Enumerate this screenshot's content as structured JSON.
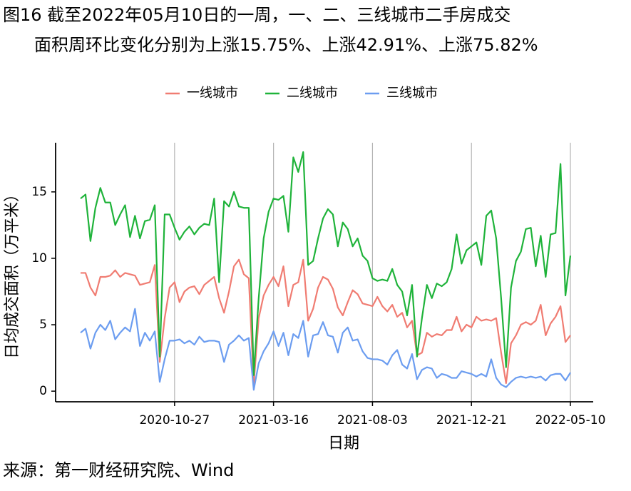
{
  "chart_data": {
    "type": "line",
    "title": "图16  截至2022年05月10日的一周，一、二、三线城市二手房成交",
    "subtitle": "面积周环比变化分别为上涨15.75%、上涨42.91%、上涨75.82%",
    "x_label": "日期",
    "y_label": "日均成交面积（万平米）",
    "source": "来源：第一财经研究院、Wind",
    "legend": "top",
    "grid": true,
    "ylim": [
      -0.8,
      18.7
    ],
    "yticks": [
      0,
      5,
      10,
      15
    ],
    "categories": [
      null,
      null,
      null,
      null,
      null,
      null,
      null,
      null,
      null,
      null,
      null,
      null,
      null,
      null,
      null,
      null,
      null,
      null,
      null,
      "2020-10-27",
      null,
      null,
      null,
      null,
      null,
      null,
      null,
      null,
      null,
      null,
      null,
      null,
      null,
      null,
      null,
      null,
      null,
      null,
      null,
      "2021-03-16",
      null,
      null,
      null,
      null,
      null,
      null,
      null,
      null,
      null,
      null,
      null,
      null,
      null,
      null,
      null,
      null,
      null,
      null,
      null,
      "2021-08-03",
      null,
      null,
      null,
      null,
      null,
      null,
      null,
      null,
      null,
      null,
      null,
      null,
      null,
      null,
      null,
      null,
      null,
      null,
      null,
      "2021-12-21",
      null,
      null,
      null,
      null,
      null,
      null,
      null,
      null,
      null,
      null,
      null,
      null,
      null,
      null,
      null,
      null,
      null,
      null,
      null,
      "2022-05-10"
    ],
    "series": [
      {
        "name": "一线城市",
        "color": "#f07c72",
        "values": [
          8.9,
          8.9,
          7.8,
          7.2,
          8.6,
          8.6,
          8.7,
          9.1,
          8.6,
          8.9,
          8.8,
          8.7,
          8.0,
          8.1,
          8.2,
          9.5,
          2.2,
          5.5,
          7.8,
          8.2,
          6.7,
          7.5,
          7.8,
          7.9,
          7.3,
          8.0,
          8.3,
          8.6,
          7.0,
          5.9,
          7.5,
          9.4,
          9.9,
          8.8,
          8.5,
          0.5,
          5.5,
          7.2,
          8.0,
          8.6,
          7.9,
          9.4,
          6.4,
          8.0,
          8.2,
          9.9,
          5.3,
          6.2,
          7.8,
          8.6,
          8.4,
          7.7,
          6.3,
          5.7,
          6.7,
          7.6,
          7.3,
          6.6,
          6.5,
          6.4,
          7.1,
          6.4,
          6.0,
          6.5,
          5.6,
          5.9,
          4.8,
          5.3,
          2.7,
          2.9,
          4.4,
          4.1,
          4.3,
          4.2,
          4.6,
          4.6,
          5.6,
          4.5,
          5.0,
          4.8,
          5.6,
          5.3,
          5.4,
          5.3,
          5.5,
          2.9,
          0.6,
          3.6,
          4.2,
          5.0,
          5.2,
          5.0,
          5.3,
          6.5,
          4.2,
          5.1,
          5.6,
          6.4,
          3.7,
          4.2
        ]
      },
      {
        "name": "二线城市",
        "color": "#1fb33a",
        "values": [
          14.5,
          14.8,
          11.3,
          13.8,
          15.3,
          14.2,
          14.2,
          12.5,
          13.3,
          14.0,
          11.6,
          13.2,
          11.5,
          12.8,
          12.9,
          14.0,
          2.6,
          13.3,
          13.3,
          12.3,
          11.4,
          12.0,
          12.4,
          11.8,
          12.3,
          12.6,
          12.5,
          14.5,
          8.2,
          14.3,
          13.9,
          15.0,
          13.9,
          13.8,
          13.8,
          1.2,
          7.0,
          11.5,
          13.5,
          14.5,
          14.4,
          14.7,
          12.0,
          17.6,
          16.5,
          18.0,
          9.5,
          9.8,
          11.5,
          13.0,
          13.7,
          13.3,
          10.9,
          12.7,
          12.2,
          10.9,
          11.5,
          10.2,
          9.8,
          8.5,
          8.3,
          8.4,
          8.3,
          9.2,
          8.0,
          7.5,
          5.7,
          8.0,
          2.6,
          5.5,
          8.0,
          7.0,
          8.1,
          7.9,
          8.2,
          9.2,
          11.8,
          9.6,
          10.6,
          10.9,
          11.2,
          9.5,
          13.2,
          13.6,
          11.5,
          7.0,
          1.8,
          7.8,
          9.8,
          10.5,
          12.2,
          12.3,
          9.4,
          11.7,
          8.6,
          11.8,
          11.9,
          17.1,
          7.2,
          10.2
        ]
      },
      {
        "name": "三线城市",
        "color": "#6c9df0",
        "values": [
          4.4,
          4.7,
          3.2,
          4.4,
          5.0,
          4.6,
          5.3,
          3.9,
          4.4,
          4.8,
          4.5,
          6.2,
          3.4,
          4.4,
          3.8,
          4.5,
          0.7,
          2.4,
          3.8,
          3.8,
          3.9,
          3.6,
          3.8,
          3.5,
          4.1,
          3.7,
          3.8,
          3.8,
          3.7,
          2.2,
          3.5,
          3.8,
          4.2,
          3.8,
          4.0,
          0.1,
          2.1,
          3.0,
          3.6,
          4.5,
          3.4,
          4.4,
          2.7,
          4.3,
          4.0,
          5.3,
          2.6,
          4.2,
          4.3,
          5.2,
          4.2,
          4.1,
          2.9,
          4.4,
          4.8,
          3.8,
          3.9,
          3.0,
          2.5,
          2.4,
          2.4,
          2.3,
          2.0,
          2.7,
          3.1,
          2.0,
          1.7,
          2.8,
          0.9,
          1.6,
          1.8,
          1.7,
          1.0,
          1.3,
          1.2,
          1.0,
          1.0,
          1.5,
          1.4,
          1.3,
          1.1,
          1.3,
          1.1,
          2.4,
          1.0,
          0.5,
          0.3,
          0.7,
          1.0,
          1.1,
          1.0,
          1.1,
          1.0,
          1.1,
          0.8,
          1.2,
          1.3,
          1.3,
          0.8,
          1.4
        ]
      }
    ]
  }
}
